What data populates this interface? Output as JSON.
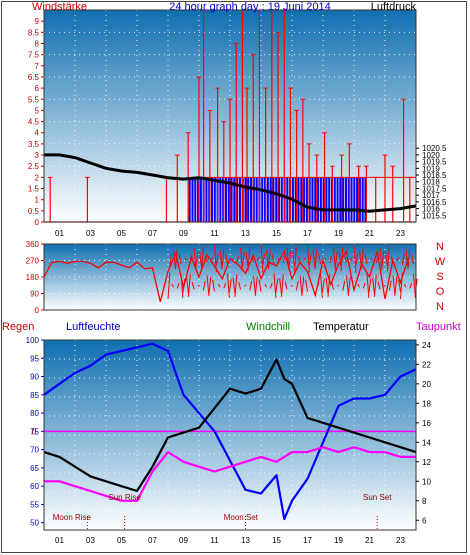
{
  "header": {
    "left_label": "Windstärke",
    "title": "24 hour graph day : 19 Juni 2014",
    "right_label": "Luftdruck"
  },
  "direction_axis": {
    "letters": [
      "N",
      "W",
      "S",
      "O",
      "N"
    ]
  },
  "bottom_header": {
    "regen": "Regen",
    "luftfeuchte": "Luftfeuchte",
    "windchill": "Windchill",
    "temperatur": "Temperatur",
    "taupunkt": "Taupunkt"
  },
  "annotations": {
    "moon_rise": "Moon Rise",
    "sun_rise": "Sun Rise",
    "moon_set": "Moon Set",
    "sun_set": "Sun Set",
    "rain_zero": "0"
  },
  "colors": {
    "wind": "#ff0000",
    "gust": "#0000ff",
    "pressure": "#000000",
    "direction": "#ff0000",
    "humidity": "#0000ff",
    "temperature": "#000000",
    "dewpoint": "#ff00ff",
    "rain_line": "#ff00ff",
    "windchill_label": "#008000",
    "bg_top": "#0f6fb0",
    "bg_bottom": "#ffffff"
  },
  "chart_data": [
    {
      "type": "line",
      "name": "wind-pressure",
      "title": "24 hour graph day : 19 Juni 2014",
      "x_ticks": [
        "01",
        "03",
        "05",
        "07",
        "09",
        "11",
        "13",
        "15",
        "17",
        "19",
        "21",
        "23"
      ],
      "xlim": [
        0,
        24
      ],
      "ylabel_left": "Windstärke",
      "ylim_left": [
        0,
        9.5
      ],
      "yticks_left": [
        0,
        0.5,
        1,
        1.5,
        2,
        2.5,
        3,
        3.5,
        4,
        4.5,
        5,
        5.5,
        6,
        6.5,
        7,
        7.5,
        8,
        8.5,
        9
      ],
      "ylabel_right": "Luftdruck",
      "ylim_right": [
        1015,
        1030.8
      ],
      "yticks_right": [
        1015.5,
        1016,
        1016.5,
        1017,
        1017.5,
        1018,
        1018.5,
        1019,
        1019.5,
        1020,
        1020.5
      ],
      "gust_spikes": [
        [
          0.4,
          2
        ],
        [
          2.8,
          2
        ],
        [
          7.9,
          2
        ],
        [
          8.6,
          3
        ],
        [
          9.3,
          4
        ],
        [
          10.0,
          6.5
        ],
        [
          10.3,
          9.5
        ],
        [
          10.7,
          5
        ],
        [
          11.2,
          6
        ],
        [
          11.6,
          4.5
        ],
        [
          12.0,
          5.5
        ],
        [
          12.4,
          8
        ],
        [
          12.8,
          9.5
        ],
        [
          13.1,
          6
        ],
        [
          13.5,
          7.5
        ],
        [
          13.9,
          9.5
        ],
        [
          14.3,
          6
        ],
        [
          14.7,
          9.5
        ],
        [
          15.1,
          8.5
        ],
        [
          15.5,
          9.5
        ],
        [
          15.9,
          6
        ],
        [
          16.3,
          5
        ],
        [
          16.7,
          5.5
        ],
        [
          17.1,
          3.5
        ],
        [
          17.6,
          3
        ],
        [
          18.1,
          4
        ],
        [
          18.6,
          2.5
        ],
        [
          19.2,
          3
        ],
        [
          19.7,
          3.5
        ],
        [
          20.3,
          2.5
        ],
        [
          20.8,
          2.5
        ],
        [
          21.4,
          2
        ],
        [
          22.0,
          3
        ],
        [
          22.5,
          2.5
        ],
        [
          23.2,
          5.5
        ],
        [
          23.6,
          2
        ]
      ],
      "pressure": {
        "x": [
          0,
          1,
          2,
          3,
          4,
          5,
          6,
          7,
          8,
          9,
          10,
          11,
          12,
          13,
          14,
          15,
          16,
          17,
          18,
          19,
          20,
          21,
          22,
          23,
          24
        ],
        "y": [
          1020.0,
          1020.0,
          1019.8,
          1019.4,
          1019.0,
          1018.8,
          1018.7,
          1018.5,
          1018.3,
          1018.2,
          1018.3,
          1018.1,
          1017.9,
          1017.6,
          1017.4,
          1017.1,
          1016.7,
          1016.1,
          1015.9,
          1015.9,
          1015.9,
          1015.8,
          1015.9,
          1016.0,
          1016.2
        ]
      },
      "avg_wind_blue": {
        "x_from": 9.5,
        "x_to": 21.3,
        "level": 2,
        "bars_from": 9.4,
        "bars_to": 20.8
      }
    },
    {
      "type": "scatter",
      "name": "wind-direction",
      "ylim": [
        0,
        360
      ],
      "yticks": [
        0,
        90,
        180,
        270,
        360
      ],
      "x": [
        0,
        0.5,
        1,
        1.5,
        2,
        2.5,
        3,
        3.5,
        4,
        4.5,
        5,
        5.5,
        6,
        6.5,
        7,
        7.5,
        8,
        8.5,
        9,
        9.5,
        10,
        10.5,
        11,
        11.5,
        12,
        12.5,
        13,
        13.5,
        14,
        14.5,
        15,
        15.5,
        16,
        16.5,
        17,
        17.5,
        18,
        18.5,
        19,
        19.5,
        20,
        20.5,
        21,
        21.5,
        22,
        22.5,
        23,
        23.5
      ],
      "y": [
        180,
        260,
        265,
        255,
        265,
        265,
        255,
        230,
        260,
        260,
        245,
        230,
        260,
        225,
        230,
        45,
        210,
        310,
        120,
        290,
        180,
        300,
        240,
        170,
        280,
        250,
        200,
        300,
        170,
        260,
        240,
        320,
        170,
        260,
        210,
        80,
        270,
        140,
        250,
        320,
        110,
        250,
        180,
        320,
        60,
        270,
        150,
        280
      ]
    },
    {
      "type": "line",
      "name": "humidity-temperature",
      "x_ticks": [
        "01",
        "03",
        "05",
        "07",
        "09",
        "11",
        "13",
        "15",
        "17",
        "19",
        "21",
        "23"
      ],
      "ylabel_left": "Luftfeuchte",
      "ylim_left": [
        48,
        100
      ],
      "yticks_left": [
        50,
        55,
        60,
        65,
        70,
        75,
        80,
        85,
        90,
        95,
        100
      ],
      "ylabel_right": "Temperatur",
      "ylim_right": [
        5,
        24.5
      ],
      "yticks_right": [
        6,
        8,
        10,
        12,
        14,
        16,
        18,
        20,
        22,
        24
      ],
      "series": [
        {
          "name": "Luftfeuchte",
          "axis": "left",
          "x": [
            0,
            1,
            2,
            3,
            4,
            5,
            6,
            7,
            8,
            9,
            10,
            11,
            12,
            13,
            14,
            15,
            15.5,
            16,
            17,
            18,
            19,
            20,
            21,
            22,
            23,
            24
          ],
          "y": [
            85,
            88,
            91,
            93,
            96,
            97,
            98,
            99,
            97,
            85,
            80,
            75,
            67,
            59,
            58,
            63,
            51,
            56,
            62,
            72,
            82,
            84,
            84,
            85,
            90,
            92
          ]
        },
        {
          "name": "Temperatur",
          "axis": "right",
          "x": [
            0,
            1,
            2,
            3,
            4,
            5,
            6,
            7,
            8,
            9,
            10,
            11,
            12,
            13,
            14,
            15,
            15.5,
            16,
            17,
            18,
            19,
            20,
            21,
            22,
            23,
            24
          ],
          "y": [
            13.0,
            12.5,
            11.5,
            10.5,
            10.0,
            9.5,
            9.0,
            11.5,
            14.5,
            15.0,
            15.5,
            17.5,
            19.5,
            19.0,
            19.5,
            22.5,
            20.5,
            20.0,
            16.5,
            16.0,
            15.5,
            15.0,
            14.5,
            14.0,
            13.5,
            13.0
          ]
        },
        {
          "name": "Taupunkt",
          "axis": "right",
          "x": [
            0,
            1,
            2,
            3,
            4,
            5,
            6,
            7,
            8,
            9,
            10,
            11,
            12,
            13,
            14,
            15,
            16,
            17,
            18,
            19,
            20,
            21,
            22,
            23,
            24
          ],
          "y": [
            10.0,
            10.0,
            9.5,
            9.0,
            8.5,
            8.0,
            8.0,
            11.0,
            13.0,
            12.0,
            11.5,
            11.0,
            11.5,
            12.0,
            12.5,
            12.0,
            13.0,
            13.0,
            13.5,
            13.0,
            13.5,
            13.0,
            13.0,
            12.5,
            12.5
          ]
        }
      ],
      "rain_zero_line": 75,
      "events": [
        {
          "name": "Moon Rise",
          "x": 2.8
        },
        {
          "name": "Sun Rise",
          "x": 5.2
        },
        {
          "name": "Moon Set",
          "x": 13.0
        },
        {
          "name": "Sun Set",
          "x": 21.5
        }
      ]
    }
  ]
}
